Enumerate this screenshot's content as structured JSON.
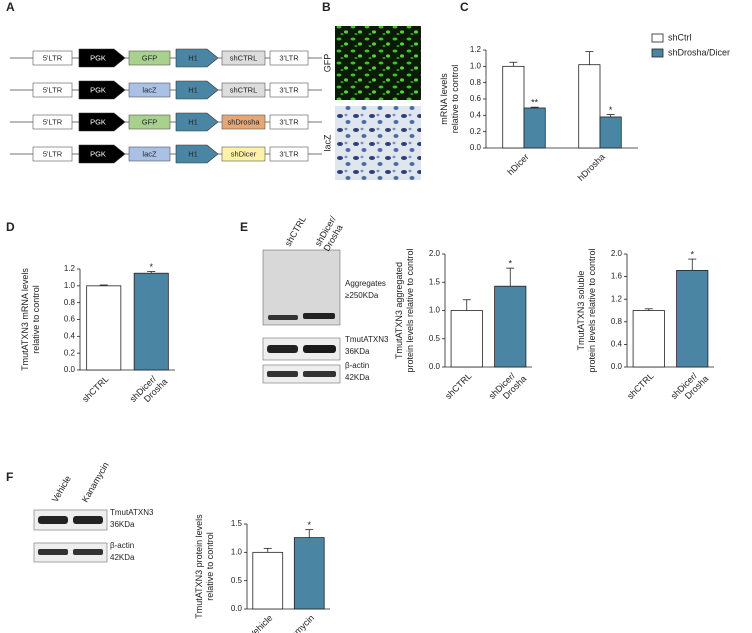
{
  "panel_labels": [
    "A",
    "B",
    "C",
    "D",
    "E",
    "F"
  ],
  "constructs": [
    {
      "labels": [
        "5'LTR",
        "PGK",
        "GFP",
        "H1",
        "shCTRL",
        "3'LTR"
      ],
      "fills": [
        "#ffffff",
        "#000000",
        "#a9d18e",
        "#4a86a4",
        "#dddddd",
        "#ffffff"
      ]
    },
    {
      "labels": [
        "5'LTR",
        "PGK",
        "lacZ",
        "H1",
        "shCTRL",
        "3'LTR"
      ],
      "fills": [
        "#ffffff",
        "#000000",
        "#a9c1e5",
        "#4a86a4",
        "#dddddd",
        "#ffffff"
      ]
    },
    {
      "labels": [
        "5'LTR",
        "PGK",
        "GFP",
        "H1",
        "shDrosha",
        "3'LTR"
      ],
      "fills": [
        "#ffffff",
        "#000000",
        "#a9d18e",
        "#4a86a4",
        "#e4a878",
        "#ffffff"
      ]
    },
    {
      "labels": [
        "5'LTR",
        "PGK",
        "lacZ",
        "H1",
        "shDicer",
        "3'LTR"
      ],
      "fills": [
        "#ffffff",
        "#000000",
        "#a9c1e5",
        "#4a86a4",
        "#fff2a8",
        "#ffffff"
      ]
    }
  ],
  "images": [
    "GFP",
    "lacZ"
  ],
  "blots": {
    "E": {
      "lanes": [
        [
          "shCTRL"
        ],
        [
          "shDicer/",
          "Drosha"
        ]
      ],
      "bands": [
        [
          "Aggregates",
          "≥250KDa"
        ],
        [
          "TmutATXN3",
          "36KDa"
        ],
        [
          "β-actin",
          "42KDa"
        ]
      ]
    },
    "F": {
      "lanes": [
        [
          "Vehicle"
        ],
        [
          "Kanamycin"
        ]
      ],
      "bands": [
        [
          "TmutATXN3",
          "36KDa"
        ],
        [
          "β-actin",
          "42KDa"
        ]
      ]
    }
  },
  "chart_data": [
    {
      "type": "bar",
      "ylabel": [
        "mRNA levels",
        "relative to control"
      ],
      "categories": [
        [
          "hDicer"
        ],
        [
          "hDrosha"
        ]
      ],
      "series": [
        {
          "name": "shCtrl",
          "color": "#ffffff",
          "values": [
            1.0,
            1.02
          ],
          "errors": [
            0.05,
            0.16
          ],
          "significance": [
            null,
            null
          ]
        },
        {
          "name": "shDrosha/Dicer",
          "color": "#4a86a4",
          "values": [
            0.49,
            0.38
          ],
          "errors": [
            0.01,
            0.03
          ],
          "significance": [
            "**",
            "*"
          ]
        }
      ],
      "ylim": [
        0,
        1.2
      ],
      "yticks": [
        {
          "value": 0,
          "label": "0.0"
        },
        {
          "value": 0.2,
          "label": "0.2"
        },
        {
          "value": 0.4,
          "label": "0.4"
        },
        {
          "value": 0.6,
          "label": "0.6"
        },
        {
          "value": 0.8,
          "label": "0.8"
        },
        {
          "value": 1.0,
          "label": "1.0"
        },
        {
          "value": 1.2,
          "label": "1.2"
        }
      ],
      "legend": "top-right"
    },
    {
      "type": "bar",
      "ylabel": [
        "TmutATXN3 mRNA levels",
        "relative to control"
      ],
      "categories": [
        [
          "shCTRL"
        ],
        [
          "shDicer/",
          "Drosha"
        ]
      ],
      "values": [
        1.0,
        1.15
      ],
      "errors": [
        0.01,
        0.02
      ],
      "colors": [
        "#ffffff",
        "#4a86a4"
      ],
      "significance": [
        null,
        "*"
      ],
      "ylim": [
        0,
        1.2
      ],
      "yticks": [
        {
          "value": 0,
          "label": "0.0"
        },
        {
          "value": 0.2,
          "label": "0.2"
        },
        {
          "value": 0.4,
          "label": "0.4"
        },
        {
          "value": 0.6,
          "label": "0.6"
        },
        {
          "value": 0.8,
          "label": "0.8"
        },
        {
          "value": 1.0,
          "label": "1.0"
        },
        {
          "value": 1.2,
          "label": "1.2"
        }
      ]
    },
    {
      "type": "bar",
      "ylabel": [
        "TmutATXN3 aggregated",
        "protein levels relative to control"
      ],
      "categories": [
        [
          "shCTRL"
        ],
        [
          "shDicer/",
          "Drosha"
        ]
      ],
      "values": [
        1.0,
        1.43
      ],
      "errors": [
        0.19,
        0.32
      ],
      "colors": [
        "#ffffff",
        "#4a86a4"
      ],
      "significance": [
        null,
        "*"
      ],
      "ylim": [
        0,
        2.0
      ],
      "yticks": [
        {
          "value": 0,
          "label": "0.0"
        },
        {
          "value": 0.5,
          "label": "0.5"
        },
        {
          "value": 1.0,
          "label": "1.0"
        },
        {
          "value": 1.5,
          "label": "1.5"
        },
        {
          "value": 2.0,
          "label": "2.0"
        }
      ]
    },
    {
      "type": "bar",
      "ylabel": [
        "TmutATXN3 soluble",
        "protein levels relative to control"
      ],
      "categories": [
        [
          "shCTRL"
        ],
        [
          "shDicer/",
          "Drosha"
        ]
      ],
      "values": [
        1.0,
        1.71
      ],
      "errors": [
        0.03,
        0.2
      ],
      "colors": [
        "#ffffff",
        "#4a86a4"
      ],
      "significance": [
        null,
        "*"
      ],
      "ylim": [
        0,
        2.0
      ],
      "yticks": [
        {
          "value": 0,
          "label": "0.0"
        },
        {
          "value": 0.4,
          "label": "0.4"
        },
        {
          "value": 0.8,
          "label": "0.8"
        },
        {
          "value": 1.2,
          "label": "1.2"
        },
        {
          "value": 1.6,
          "label": "1.6"
        },
        {
          "value": 2.0,
          "label": "2.0"
        }
      ]
    },
    {
      "type": "bar",
      "ylabel": [
        "TmutATXN3 protein levels",
        "relative to control"
      ],
      "categories": [
        [
          "Vehicle"
        ],
        [
          "Kanamycin"
        ]
      ],
      "values": [
        1.0,
        1.26
      ],
      "errors": [
        0.07,
        0.14
      ],
      "colors": [
        "#ffffff",
        "#4a86a4"
      ],
      "significance": [
        null,
        "*"
      ],
      "ylim": [
        0,
        1.5
      ],
      "yticks": [
        {
          "value": 0,
          "label": "0.0"
        },
        {
          "value": 0.5,
          "label": "0.5"
        },
        {
          "value": 1.0,
          "label": "1.0"
        },
        {
          "value": 1.5,
          "label": "1.5"
        }
      ]
    }
  ]
}
